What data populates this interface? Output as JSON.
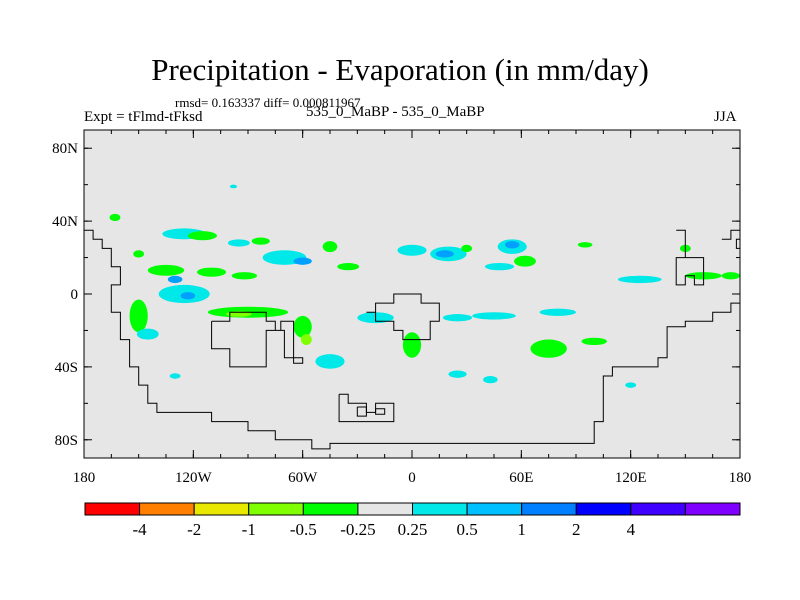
{
  "title": "Precipitation - Evaporation (in mm/day)",
  "stats": "rmsd= 0.163337 diff= 0.000811967",
  "experiment": "Expt = tFlmd-tFksd",
  "case_label": "535_0_MaBP - 535_0_MaBP",
  "season": "JJA",
  "map": {
    "projection": "cylindrical-equidistant",
    "lon_range": [
      -180,
      180
    ],
    "lat_range": [
      -90,
      90
    ],
    "x_ticks": [
      {
        "lon": -180,
        "label": "180"
      },
      {
        "lon": -120,
        "label": "120W"
      },
      {
        "lon": -60,
        "label": "60W"
      },
      {
        "lon": 0,
        "label": "0"
      },
      {
        "lon": 60,
        "label": "60E"
      },
      {
        "lon": 120,
        "label": "120E"
      },
      {
        "lon": 180,
        "label": "180"
      }
    ],
    "y_ticks": [
      {
        "lat": 80,
        "label": "80N"
      },
      {
        "lat": 40,
        "label": "40N"
      },
      {
        "lat": 0,
        "label": "0"
      },
      {
        "lat": -40,
        "label": "40S"
      },
      {
        "lat": -80,
        "label": "80S"
      }
    ],
    "background_color": "#e6e6e6",
    "coastlines": [
      [
        [
          -180,
          35
        ],
        [
          -175,
          35
        ],
        [
          -175,
          30
        ],
        [
          -170,
          30
        ],
        [
          -170,
          25
        ],
        [
          -165,
          25
        ],
        [
          -165,
          15
        ],
        [
          -160,
          15
        ],
        [
          -160,
          5
        ],
        [
          -165,
          5
        ],
        [
          -165,
          -10
        ],
        [
          -160,
          -10
        ],
        [
          -160,
          -25
        ],
        [
          -155,
          -25
        ],
        [
          -155,
          -40
        ],
        [
          -150,
          -40
        ],
        [
          -150,
          -50
        ],
        [
          -145,
          -50
        ],
        [
          -145,
          -60
        ],
        [
          -140,
          -60
        ],
        [
          -140,
          -65
        ],
        [
          -110,
          -65
        ],
        [
          -110,
          -70
        ],
        [
          -90,
          -70
        ],
        [
          -90,
          -75
        ],
        [
          -75,
          -75
        ],
        [
          -75,
          -80
        ],
        [
          -55,
          -80
        ],
        [
          -55,
          -85
        ],
        [
          -45,
          -85
        ],
        [
          -45,
          -82
        ],
        [
          100,
          -82
        ],
        [
          100,
          -70
        ],
        [
          105,
          -70
        ],
        [
          105,
          -45
        ],
        [
          110,
          -45
        ],
        [
          110,
          -40
        ],
        [
          135,
          -40
        ],
        [
          135,
          -35
        ],
        [
          140,
          -35
        ],
        [
          140,
          -18
        ],
        [
          150,
          -18
        ],
        [
          150,
          -15
        ],
        [
          165,
          -15
        ],
        [
          165,
          -10
        ],
        [
          175,
          -10
        ],
        [
          175,
          -5
        ],
        [
          180,
          -5
        ]
      ],
      [
        [
          -110,
          -15
        ],
        [
          -100,
          -15
        ],
        [
          -100,
          -10
        ],
        [
          -80,
          -10
        ],
        [
          -80,
          -15
        ],
        [
          -75,
          -15
        ],
        [
          -75,
          -20
        ],
        [
          -70,
          -20
        ],
        [
          -70,
          -35
        ],
        [
          -65,
          -35
        ],
        [
          -65,
          -15
        ],
        [
          -72,
          -15
        ],
        [
          -72,
          -20
        ],
        [
          -80,
          -20
        ],
        [
          -80,
          -40
        ],
        [
          -100,
          -40
        ],
        [
          -100,
          -30
        ],
        [
          -110,
          -30
        ],
        [
          -110,
          -15
        ]
      ],
      [
        [
          -65,
          -35
        ],
        [
          -60,
          -35
        ],
        [
          -60,
          -38
        ],
        [
          -65,
          -38
        ],
        [
          -65,
          -35
        ]
      ],
      [
        [
          -25,
          -10
        ],
        [
          -20,
          -10
        ],
        [
          -20,
          -5
        ],
        [
          -10,
          -5
        ],
        [
          -10,
          0
        ],
        [
          5,
          0
        ],
        [
          5,
          -5
        ],
        [
          15,
          -5
        ],
        [
          15,
          -15
        ],
        [
          10,
          -15
        ],
        [
          10,
          -25
        ],
        [
          -5,
          -25
        ],
        [
          -5,
          -20
        ],
        [
          -10,
          -20
        ],
        [
          -10,
          -15
        ],
        [
          -20,
          -15
        ],
        [
          -20,
          -10
        ],
        [
          -25,
          -10
        ]
      ],
      [
        [
          -40,
          -55
        ],
        [
          -35,
          -55
        ],
        [
          -35,
          -60
        ],
        [
          -25,
          -60
        ],
        [
          -25,
          -65
        ],
        [
          -20,
          -65
        ],
        [
          -20,
          -60
        ],
        [
          -10,
          -60
        ],
        [
          -10,
          -70
        ],
        [
          -40,
          -70
        ],
        [
          -40,
          -55
        ]
      ],
      [
        [
          -30,
          -62
        ],
        [
          -25,
          -62
        ],
        [
          -25,
          -67
        ],
        [
          -30,
          -67
        ],
        [
          -30,
          -62
        ]
      ],
      [
        [
          -20,
          -63
        ],
        [
          -15,
          -63
        ],
        [
          -15,
          -66
        ],
        [
          -20,
          -66
        ],
        [
          -20,
          -63
        ]
      ],
      [
        [
          145,
          35
        ],
        [
          150,
          35
        ],
        [
          150,
          20
        ],
        [
          145,
          20
        ],
        [
          145,
          5
        ],
        [
          150,
          5
        ],
        [
          150,
          10
        ],
        [
          155,
          10
        ],
        [
          155,
          5
        ],
        [
          160,
          5
        ],
        [
          160,
          20
        ],
        [
          145,
          20
        ]
      ],
      [
        [
          170,
          30
        ],
        [
          175,
          30
        ],
        [
          175,
          35
        ],
        [
          180,
          35
        ]
      ],
      [
        [
          180,
          30
        ],
        [
          178,
          30
        ],
        [
          178,
          25
        ],
        [
          180,
          25
        ]
      ]
    ],
    "anomaly_patches": [
      {
        "lon": -163,
        "lat": 42,
        "rx": 3,
        "ry": 2,
        "color": "#00ff00"
      },
      {
        "lon": -125,
        "lat": 33,
        "rx": 12,
        "ry": 3,
        "color": "#00e8e8"
      },
      {
        "lon": -115,
        "lat": 32,
        "rx": 8,
        "ry": 2.5,
        "color": "#00ff00"
      },
      {
        "lon": -95,
        "lat": 28,
        "rx": 6,
        "ry": 2,
        "color": "#00e8e8"
      },
      {
        "lon": -83,
        "lat": 29,
        "rx": 5,
        "ry": 2,
        "color": "#00ff00"
      },
      {
        "lon": -150,
        "lat": 22,
        "rx": 3,
        "ry": 2,
        "color": "#00ff00"
      },
      {
        "lon": -135,
        "lat": 13,
        "rx": 10,
        "ry": 3,
        "color": "#00ff00"
      },
      {
        "lon": -110,
        "lat": 12,
        "rx": 8,
        "ry": 2.5,
        "color": "#00ff00"
      },
      {
        "lon": -92,
        "lat": 10,
        "rx": 7,
        "ry": 2,
        "color": "#00ff00"
      },
      {
        "lon": -70,
        "lat": 20,
        "rx": 12,
        "ry": 4,
        "color": "#00e8e8"
      },
      {
        "lon": -60,
        "lat": 18,
        "rx": 5,
        "ry": 2,
        "color": "#00a0ff"
      },
      {
        "lon": -45,
        "lat": 26,
        "rx": 4,
        "ry": 3,
        "color": "#00ff00"
      },
      {
        "lon": -35,
        "lat": 15,
        "rx": 6,
        "ry": 2,
        "color": "#00ff00"
      },
      {
        "lon": -125,
        "lat": 0,
        "rx": 14,
        "ry": 5,
        "color": "#00e8e8"
      },
      {
        "lon": -123,
        "lat": -1,
        "rx": 4,
        "ry": 2,
        "color": "#00a0ff"
      },
      {
        "lon": -130,
        "lat": 8,
        "rx": 4,
        "ry": 2,
        "color": "#00a0ff"
      },
      {
        "lon": -150,
        "lat": -12,
        "rx": 5,
        "ry": 9,
        "color": "#00ff00"
      },
      {
        "lon": -145,
        "lat": -22,
        "rx": 6,
        "ry": 3,
        "color": "#00e8e8"
      },
      {
        "lon": -90,
        "lat": -10,
        "rx": 22,
        "ry": 3,
        "color": "#00ff00"
      },
      {
        "lon": -95,
        "lat": -11,
        "rx": 7,
        "ry": 1.5,
        "color": "#80ff00"
      },
      {
        "lon": -60,
        "lat": -18,
        "rx": 5,
        "ry": 6,
        "color": "#00ff00"
      },
      {
        "lon": -58,
        "lat": -25,
        "rx": 3,
        "ry": 3,
        "color": "#80ff00"
      },
      {
        "lon": -45,
        "lat": -37,
        "rx": 8,
        "ry": 4,
        "color": "#00e8e8"
      },
      {
        "lon": -20,
        "lat": -13,
        "rx": 10,
        "ry": 3,
        "color": "#00e8e8"
      },
      {
        "lon": 0,
        "lat": 24,
        "rx": 8,
        "ry": 3,
        "color": "#00e8e8"
      },
      {
        "lon": 20,
        "lat": 22,
        "rx": 10,
        "ry": 4,
        "color": "#00e8e8"
      },
      {
        "lon": 18,
        "lat": 22,
        "rx": 5,
        "ry": 2,
        "color": "#00a0ff"
      },
      {
        "lon": 30,
        "lat": 25,
        "rx": 3,
        "ry": 2,
        "color": "#00ff00"
      },
      {
        "lon": 55,
        "lat": 26,
        "rx": 8,
        "ry": 4,
        "color": "#00e8e8"
      },
      {
        "lon": 55,
        "lat": 27,
        "rx": 4,
        "ry": 2,
        "color": "#00a0ff"
      },
      {
        "lon": 62,
        "lat": 18,
        "rx": 6,
        "ry": 3,
        "color": "#00ff00"
      },
      {
        "lon": 48,
        "lat": 15,
        "rx": 8,
        "ry": 2,
        "color": "#00e8e8"
      },
      {
        "lon": 95,
        "lat": 27,
        "rx": 4,
        "ry": 1.5,
        "color": "#00ff00"
      },
      {
        "lon": 0,
        "lat": -28,
        "rx": 5,
        "ry": 7,
        "color": "#00ff00"
      },
      {
        "lon": 25,
        "lat": -13,
        "rx": 8,
        "ry": 2,
        "color": "#00e8e8"
      },
      {
        "lon": 45,
        "lat": -12,
        "rx": 12,
        "ry": 2,
        "color": "#00e8e8"
      },
      {
        "lon": 80,
        "lat": -10,
        "rx": 10,
        "ry": 2,
        "color": "#00e8e8"
      },
      {
        "lon": 75,
        "lat": -30,
        "rx": 10,
        "ry": 5,
        "color": "#00ff00"
      },
      {
        "lon": 100,
        "lat": -26,
        "rx": 7,
        "ry": 2,
        "color": "#00ff00"
      },
      {
        "lon": 125,
        "lat": 8,
        "rx": 12,
        "ry": 2,
        "color": "#00e8e8"
      },
      {
        "lon": 160,
        "lat": 10,
        "rx": 10,
        "ry": 2,
        "color": "#00ff00"
      },
      {
        "lon": 150,
        "lat": 25,
        "rx": 3,
        "ry": 2,
        "color": "#00ff00"
      },
      {
        "lon": 175,
        "lat": 10,
        "rx": 5,
        "ry": 2,
        "color": "#00ff00"
      },
      {
        "lon": 25,
        "lat": -44,
        "rx": 5,
        "ry": 2,
        "color": "#00e8e8"
      },
      {
        "lon": 43,
        "lat": -47,
        "rx": 4,
        "ry": 2,
        "color": "#00e8e8"
      },
      {
        "lon": 120,
        "lat": -50,
        "rx": 3,
        "ry": 1.5,
        "color": "#00e8e8"
      },
      {
        "lon": -130,
        "lat": -45,
        "rx": 3,
        "ry": 1.5,
        "color": "#00e8e8"
      },
      {
        "lon": -98,
        "lat": 59,
        "rx": 2,
        "ry": 1,
        "color": "#00e8e8"
      }
    ]
  },
  "colorbar": {
    "colors": [
      "#ff0000",
      "#ff8000",
      "#e8e800",
      "#80ff00",
      "#00ff00",
      "#e6e6e6",
      "#00e8e8",
      "#00c0ff",
      "#0080ff",
      "#0000ff",
      "#4000ff",
      "#8000ff"
    ],
    "labels": [
      "-4",
      "-2",
      "-1",
      "-0.5",
      "-0.25",
      "0.25",
      "0.5",
      "1",
      "2",
      "4"
    ]
  }
}
